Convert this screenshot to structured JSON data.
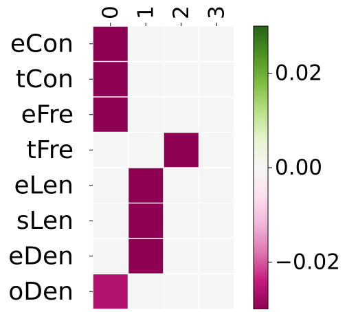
{
  "chart_data": {
    "type": "heatmap",
    "title": "",
    "xlabel": "",
    "ylabel": "",
    "x_categories": [
      "0",
      "1",
      "2",
      "3"
    ],
    "y_categories": [
      "eCon",
      "tCon",
      "eFre",
      "tFre",
      "eLen",
      "sLen",
      "eDen",
      "oDen"
    ],
    "values": [
      [
        -0.03,
        0,
        0,
        0
      ],
      [
        -0.03,
        0,
        0,
        0
      ],
      [
        -0.03,
        0,
        0,
        0
      ],
      [
        0,
        0,
        -0.03,
        0
      ],
      [
        0,
        -0.03,
        0,
        0
      ],
      [
        0,
        -0.03,
        0,
        0
      ],
      [
        0,
        -0.03,
        0,
        0
      ],
      [
        -0.026,
        0,
        0,
        0
      ]
    ],
    "zero_cell_color": "#f5f5f5",
    "colormap": "PiYG",
    "colorbar": {
      "range": [
        -0.03,
        0.03
      ],
      "ticks": [
        -0.02,
        0.0,
        0.02
      ],
      "tick_labels": [
        "−0.02",
        "0.00",
        "0.02"
      ],
      "colors": [
        "#8e0152",
        "#c51b7d",
        "#de77ae",
        "#f1b6da",
        "#fde0ef",
        "#f7f7f7",
        "#e6f5d0",
        "#b8e186",
        "#7fbc41",
        "#4d9221",
        "#276419"
      ]
    },
    "grid": false
  }
}
